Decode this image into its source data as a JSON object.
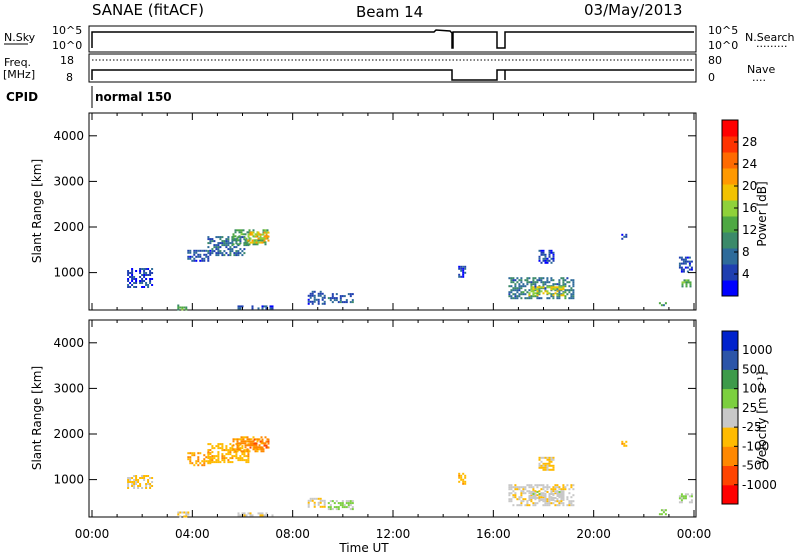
{
  "header": {
    "title": "SANAE (fitACF)",
    "beam": "Beam 14",
    "date": "03/May/2013"
  },
  "status_panel": {
    "nsky_label": "N.Sky",
    "nsearch_label": "N.Search",
    "freq_label": "Freq.",
    "freq_unit": "[MHz]",
    "nave_label": "Nave",
    "cpid_label": "CPID",
    "cpid_value": "normal 150",
    "noise_ticks": [
      "10^5",
      "10^0"
    ],
    "freq_ticks": [
      "18",
      "8"
    ],
    "nave_ticks": [
      "80",
      "0"
    ]
  },
  "colors": {
    "power_scale": [
      "#0000ff",
      "#1f3fb0",
      "#2e6b9a",
      "#3b8a6a",
      "#4ea843",
      "#8fd13a",
      "#f2c200",
      "#ff9900",
      "#ff6a00",
      "#ff3300",
      "#ff0000"
    ],
    "velocity_scale": [
      "#ff0000",
      "#ff4400",
      "#ff8800",
      "#ffbb00",
      "#c8c8c8",
      "#7ccf3f",
      "#3d9a4a",
      "#2c55a8",
      "#0022cc"
    ]
  },
  "chart_data": [
    {
      "type": "heatmap",
      "name": "power",
      "xlabel": "Time UT",
      "ylabel": "Slant Range [km]",
      "x_ticks": [
        "00:00",
        "04:00",
        "08:00",
        "12:00",
        "16:00",
        "20:00",
        "00:00"
      ],
      "y_ticks": [
        "1000",
        "2000",
        "3000",
        "4000"
      ],
      "xlim": [
        0,
        24
      ],
      "ylim": [
        180,
        4500
      ],
      "colorbar_label": "Power [dB]",
      "colorbar_ticks": [
        "28",
        "24",
        "20",
        "16",
        "12",
        "8",
        "4"
      ],
      "colorbar_range": [
        0,
        30
      ],
      "patches": [
        {
          "x": [
            1.4,
            2.4
          ],
          "y": [
            700,
            1100
          ],
          "v": 4
        },
        {
          "x": [
            3.8,
            4.7
          ],
          "y": [
            1250,
            1500
          ],
          "v": 5
        },
        {
          "x": [
            4.6,
            6.2
          ],
          "y": [
            1400,
            1800
          ],
          "v": 7
        },
        {
          "x": [
            5.6,
            7.0
          ],
          "y": [
            1600,
            1950
          ],
          "v": 12
        },
        {
          "x": [
            6.2,
            7.0
          ],
          "y": [
            1650,
            1900
          ],
          "v": 18
        },
        {
          "x": [
            3.4,
            3.8
          ],
          "y": [
            200,
            300
          ],
          "v": 12
        },
        {
          "x": [
            5.8,
            7.2
          ],
          "y": [
            200,
            280
          ],
          "v": 4
        },
        {
          "x": [
            8.6,
            9.3
          ],
          "y": [
            300,
            600
          ],
          "v": 5
        },
        {
          "x": [
            9.4,
            10.4
          ],
          "y": [
            350,
            550
          ],
          "v": 6
        },
        {
          "x": [
            14.6,
            14.9
          ],
          "y": [
            900,
            1150
          ],
          "v": 4
        },
        {
          "x": [
            16.6,
            19.2
          ],
          "y": [
            450,
            900
          ],
          "v": 8
        },
        {
          "x": [
            17.4,
            18.8
          ],
          "y": [
            500,
            700
          ],
          "v": 16
        },
        {
          "x": [
            17.8,
            18.4
          ],
          "y": [
            1200,
            1500
          ],
          "v": 4
        },
        {
          "x": [
            21.1,
            21.3
          ],
          "y": [
            1700,
            1850
          ],
          "v": 4
        },
        {
          "x": [
            23.4,
            23.9
          ],
          "y": [
            1000,
            1350
          ],
          "v": 5
        },
        {
          "x": [
            23.5,
            23.9
          ],
          "y": [
            700,
            850
          ],
          "v": 12
        },
        {
          "x": [
            22.6,
            22.9
          ],
          "y": [
            250,
            350
          ],
          "v": 10
        }
      ]
    },
    {
      "type": "heatmap",
      "name": "velocity",
      "xlabel": "Time UT",
      "ylabel": "Slant Range [km]",
      "x_ticks": [
        "00:00",
        "04:00",
        "08:00",
        "12:00",
        "16:00",
        "20:00",
        "00:00"
      ],
      "y_ticks": [
        "1000",
        "2000",
        "3000",
        "4000"
      ],
      "xlim": [
        0,
        24
      ],
      "ylim": [
        180,
        4500
      ],
      "colorbar_label": "Velocity [m s⁻¹]",
      "colorbar_ticks": [
        "1000",
        "500",
        "100",
        "25",
        "-25",
        "-100",
        "-500",
        "-1000"
      ],
      "colorbar_range": [
        -1200,
        1200
      ],
      "patches": [
        {
          "x": [
            1.4,
            2.4
          ],
          "y": [
            800,
            1100
          ],
          "v": -150
        },
        {
          "x": [
            3.8,
            4.7
          ],
          "y": [
            1300,
            1600
          ],
          "v": -400
        },
        {
          "x": [
            4.6,
            6.2
          ],
          "y": [
            1400,
            1800
          ],
          "v": -300
        },
        {
          "x": [
            5.6,
            7.0
          ],
          "y": [
            1600,
            1950
          ],
          "v": -450
        },
        {
          "x": [
            6.2,
            7.0
          ],
          "y": [
            1700,
            1900
          ],
          "v": -600
        },
        {
          "x": [
            3.4,
            3.8
          ],
          "y": [
            200,
            300
          ],
          "v": -150
        },
        {
          "x": [
            5.8,
            7.2
          ],
          "y": [
            200,
            280
          ],
          "v": -80
        },
        {
          "x": [
            8.6,
            9.3
          ],
          "y": [
            400,
            600
          ],
          "v": -80
        },
        {
          "x": [
            9.4,
            10.4
          ],
          "y": [
            350,
            550
          ],
          "v": 150
        },
        {
          "x": [
            14.6,
            14.9
          ],
          "y": [
            900,
            1150
          ],
          "v": -300
        },
        {
          "x": [
            16.6,
            19.2
          ],
          "y": [
            450,
            900
          ],
          "v": -80
        },
        {
          "x": [
            17.4,
            18.8
          ],
          "y": [
            550,
            750
          ],
          "v": 0
        },
        {
          "x": [
            17.8,
            18.4
          ],
          "y": [
            1200,
            1500
          ],
          "v": -150
        },
        {
          "x": [
            21.1,
            21.3
          ],
          "y": [
            1750,
            1850
          ],
          "v": -300
        },
        {
          "x": [
            23.4,
            23.9
          ],
          "y": [
            500,
            700
          ],
          "v": 150
        },
        {
          "x": [
            22.6,
            22.9
          ],
          "y": [
            250,
            350
          ],
          "v": 150
        }
      ]
    }
  ]
}
